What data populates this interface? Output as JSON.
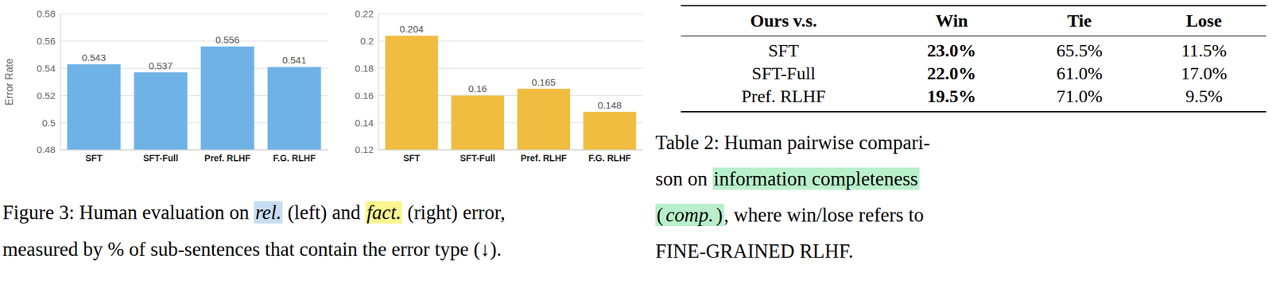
{
  "chart_data": [
    {
      "type": "bar",
      "y_label": "Error Rate",
      "categories": [
        "SFT",
        "SFT-Full",
        "Pref. RLHF",
        "F.G. RLHF"
      ],
      "values": [
        0.543,
        0.537,
        0.556,
        0.541
      ],
      "color": "#6fb3e6",
      "ylim": [
        0.48,
        0.58
      ],
      "yticks": [
        0.48,
        0.5,
        0.52,
        0.54,
        0.56,
        0.58
      ],
      "grid": true,
      "data_labels": true
    },
    {
      "type": "bar",
      "categories": [
        "SFT",
        "SFT-Full",
        "Pref. RLHF",
        "F.G. RLHF"
      ],
      "values": [
        0.204,
        0.16,
        0.165,
        0.148
      ],
      "color": "#f0bd41",
      "ylim": [
        0.12,
        0.22
      ],
      "yticks": [
        0.12,
        0.14,
        0.16,
        0.18,
        0.2,
        0.22
      ],
      "grid": true,
      "data_labels": true
    }
  ],
  "figure_caption": {
    "lines": [
      [
        {
          "text": "Figure 3: Human evaluation on "
        },
        {
          "text": "rel.",
          "highlight": "#c7ddf1",
          "italic": true
        },
        {
          "text": " (left) and "
        },
        {
          "text": "fact.",
          "highlight": "#fbf590",
          "italic": true
        },
        {
          "text": " (right) error,"
        }
      ],
      [
        {
          "text": "measured by % of sub-sentences that contain the error type (↓)."
        }
      ]
    ]
  },
  "table": {
    "header": [
      "Ours v.s.",
      "Win",
      "Tie",
      "Lose"
    ],
    "rows": [
      [
        "SFT",
        "23.0%",
        "65.5%",
        "11.5%"
      ],
      [
        "SFT-Full",
        "22.0%",
        "61.0%",
        "17.0%"
      ],
      [
        "Pref. RLHF",
        "19.5%",
        "71.0%",
        "9.5%"
      ]
    ]
  },
  "table_caption": {
    "lines": [
      [
        {
          "text": "Table 2: Human pairwise compari-"
        }
      ],
      [
        {
          "text": "son on "
        },
        {
          "text": "information completeness",
          "highlight": "#b9f0cc"
        }
      ],
      [
        {
          "text": "(",
          "highlight": "#b9f0cc"
        },
        {
          "text": "comp.",
          "highlight": "#b9f0cc",
          "italic": true
        },
        {
          "text": ")",
          "highlight": "#b9f0cc"
        },
        {
          "text": ", where win/lose refers to"
        }
      ],
      [
        {
          "text": "FINE-GRAINED RLHF."
        }
      ]
    ]
  }
}
